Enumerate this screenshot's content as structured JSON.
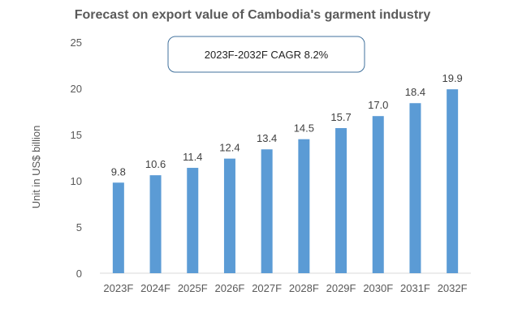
{
  "chart_data": {
    "type": "bar",
    "title": "Forecast on export value of Cambodia's garment industry",
    "xlabel": "",
    "ylabel": "Unit in US$ billion",
    "ylim": [
      0,
      25
    ],
    "yticks": [
      0,
      5,
      10,
      15,
      20,
      25
    ],
    "grid": false,
    "categories": [
      "2023F",
      "2024F",
      "2025F",
      "2026F",
      "2027F",
      "2028F",
      "2029F",
      "2030F",
      "2031F",
      "2032F"
    ],
    "values": [
      9.8,
      10.6,
      11.4,
      12.4,
      13.4,
      14.5,
      15.7,
      17.0,
      18.4,
      19.9
    ],
    "value_labels": [
      "9.8",
      "10.6",
      "11.4",
      "12.4",
      "13.4",
      "14.5",
      "15.7",
      "17.0",
      "18.4",
      "19.9"
    ],
    "annotation": "2023F-2032F CAGR 8.2%",
    "bar_color": "#5b9bd5"
  }
}
